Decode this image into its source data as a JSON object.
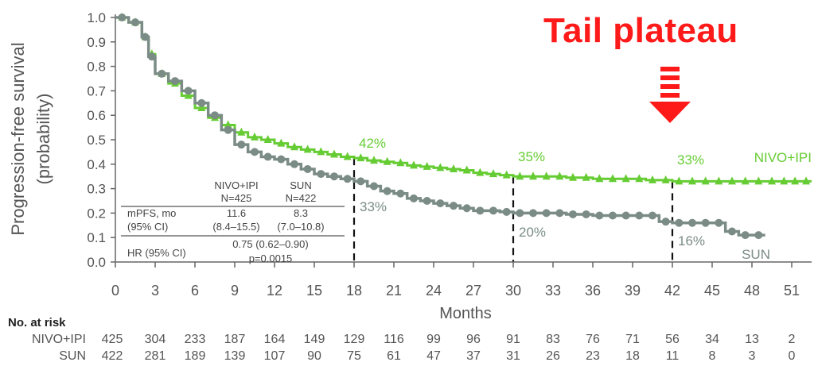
{
  "chart_data": {
    "type": "line",
    "title": "",
    "callout": "Tail plateau",
    "xlabel": "Months",
    "ylabel_line1": "Progression-free survival",
    "ylabel_line2": "(probability)",
    "xlim": [
      0,
      52.5
    ],
    "ylim": [
      0,
      1.0
    ],
    "xticks": [
      "0",
      "3",
      "6",
      "9",
      "12",
      "15",
      "18",
      "21",
      "24",
      "27",
      "30",
      "33",
      "36",
      "39",
      "42",
      "45",
      "48",
      "51"
    ],
    "yticks": [
      "0.0",
      "0.1",
      "0.2",
      "0.3",
      "0.4",
      "0.5",
      "0.6",
      "0.7",
      "0.8",
      "0.9",
      "1.0"
    ],
    "plateau_marker_month": 42,
    "reference_lines": [
      18,
      30,
      42
    ],
    "series": [
      {
        "name": "NIVO+IPI",
        "color": "#66cc33",
        "x": [
          0,
          1,
          2,
          2.5,
          3,
          4,
          5,
          6,
          7,
          8,
          9,
          10,
          11,
          12,
          13,
          14,
          15,
          16,
          17,
          18,
          19,
          20,
          21,
          22,
          23,
          24,
          25,
          26,
          27,
          28,
          29,
          30,
          32,
          34,
          36,
          38,
          40,
          42,
          44,
          46,
          48,
          50,
          52.5
        ],
        "values": [
          1.0,
          0.98,
          0.92,
          0.85,
          0.77,
          0.73,
          0.68,
          0.63,
          0.59,
          0.56,
          0.53,
          0.51,
          0.5,
          0.485,
          0.47,
          0.46,
          0.45,
          0.44,
          0.43,
          0.425,
          0.415,
          0.41,
          0.405,
          0.395,
          0.39,
          0.385,
          0.38,
          0.375,
          0.365,
          0.36,
          0.355,
          0.35,
          0.35,
          0.345,
          0.34,
          0.34,
          0.335,
          0.33,
          0.33,
          0.33,
          0.33,
          0.33,
          0.33
        ],
        "labels": [
          {
            "x": 18,
            "text": "42%"
          },
          {
            "x": 30,
            "text": "35%"
          },
          {
            "x": 42,
            "text": "33%"
          }
        ]
      },
      {
        "name": "SUN",
        "color": "#7a8c85",
        "x": [
          0,
          1,
          2,
          2.5,
          3,
          4,
          5,
          6,
          7,
          8,
          9,
          10,
          11,
          12,
          13,
          14,
          15,
          16,
          17,
          18,
          19,
          20,
          21,
          22,
          23,
          24,
          25,
          26,
          27,
          28,
          29,
          30,
          32,
          34,
          36,
          38,
          40,
          41,
          42,
          44,
          45,
          46,
          47,
          49
        ],
        "values": [
          1.0,
          0.98,
          0.92,
          0.84,
          0.77,
          0.74,
          0.7,
          0.65,
          0.6,
          0.54,
          0.48,
          0.45,
          0.43,
          0.42,
          0.4,
          0.38,
          0.36,
          0.35,
          0.34,
          0.33,
          0.31,
          0.29,
          0.28,
          0.26,
          0.25,
          0.24,
          0.23,
          0.22,
          0.21,
          0.21,
          0.205,
          0.2,
          0.2,
          0.195,
          0.19,
          0.19,
          0.19,
          0.165,
          0.16,
          0.16,
          0.16,
          0.125,
          0.11,
          0.11
        ],
        "labels": [
          {
            "x": 18,
            "text": "33%"
          },
          {
            "x": 30,
            "text": "20%"
          },
          {
            "x": 42,
            "text": "16%"
          }
        ]
      }
    ],
    "stats_table": {
      "headers": [
        "NIVO+IPI",
        "SUN"
      ],
      "n_row": [
        "N=425",
        "N=422"
      ],
      "mpfs_label_1": "mPFS, mo",
      "mpfs_label_2": "(95% CI)",
      "mpfs_values": [
        "11.6",
        "8.3"
      ],
      "mpfs_ci": [
        "(8.4–15.5)",
        "(7.0–10.8)"
      ],
      "hr_label": "HR (95% CI)",
      "hr_value": "0.75 (0.62–0.90)",
      "p_value": "p=0.0015"
    },
    "at_risk": {
      "title": "No. at risk",
      "rows": [
        {
          "name": "NIVO+IPI",
          "values": [
            "425",
            "304",
            "233",
            "187",
            "164",
            "149",
            "129",
            "116",
            "99",
            "96",
            "91",
            "83",
            "76",
            "71",
            "56",
            "34",
            "13",
            "2"
          ]
        },
        {
          "name": "SUN",
          "values": [
            "422",
            "281",
            "189",
            "139",
            "107",
            "90",
            "75",
            "61",
            "47",
            "37",
            "31",
            "26",
            "23",
            "18",
            "11",
            "8",
            "3",
            "0"
          ]
        }
      ]
    }
  }
}
